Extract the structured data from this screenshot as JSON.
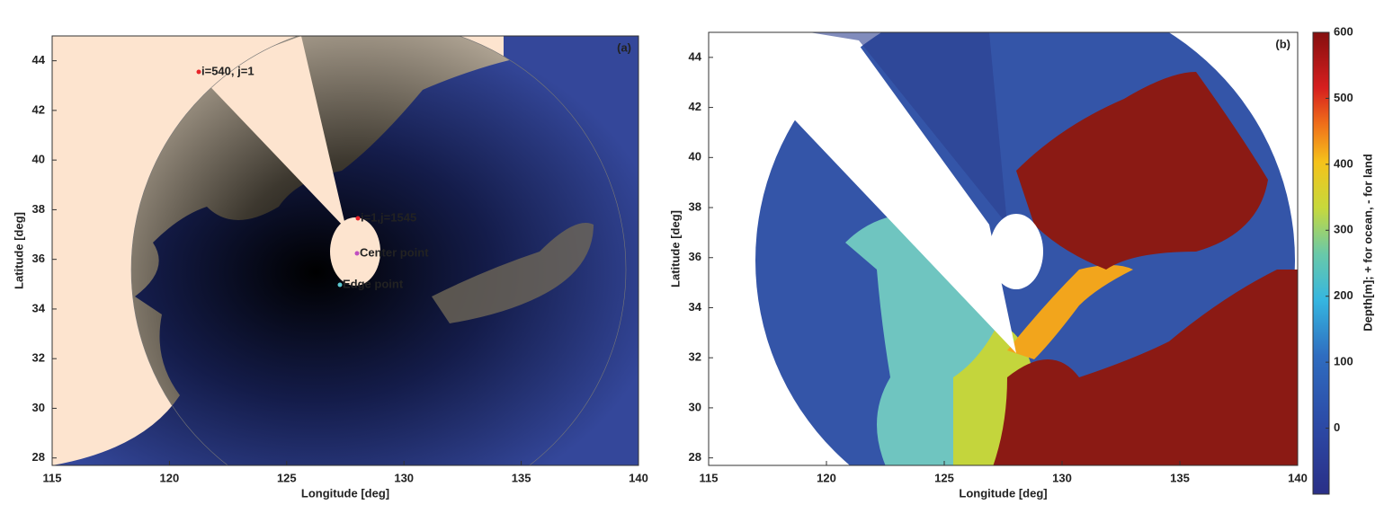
{
  "panels": [
    {
      "label": "(a)",
      "x_label": "Longitude [deg]",
      "y_label": "Latitude [deg]",
      "xlim": [
        115,
        140
      ],
      "ylim": [
        27.7,
        45
      ],
      "xticks": [
        115,
        120,
        125,
        130,
        135,
        140
      ],
      "yticks": [
        28,
        30,
        32,
        34,
        36,
        38,
        40,
        42,
        44
      ],
      "annotations": [
        "i=540, j=1",
        "i=1,j=1545",
        "Center point",
        "Edge point"
      ]
    },
    {
      "label": "(b)",
      "x_label": "Longitude [deg]",
      "y_label": "Latitude [deg]",
      "xlim": [
        115,
        140
      ],
      "ylim": [
        27.7,
        45
      ],
      "xticks": [
        115,
        120,
        125,
        130,
        135,
        140
      ],
      "yticks": [
        28,
        30,
        32,
        34,
        36,
        38,
        40,
        42,
        44
      ],
      "colorbar": {
        "label": "Depth[m]; + for ocean, - for land",
        "lim": [
          -100,
          600
        ],
        "ticks": [
          0,
          100,
          200,
          300,
          400,
          500,
          600
        ]
      }
    }
  ]
}
